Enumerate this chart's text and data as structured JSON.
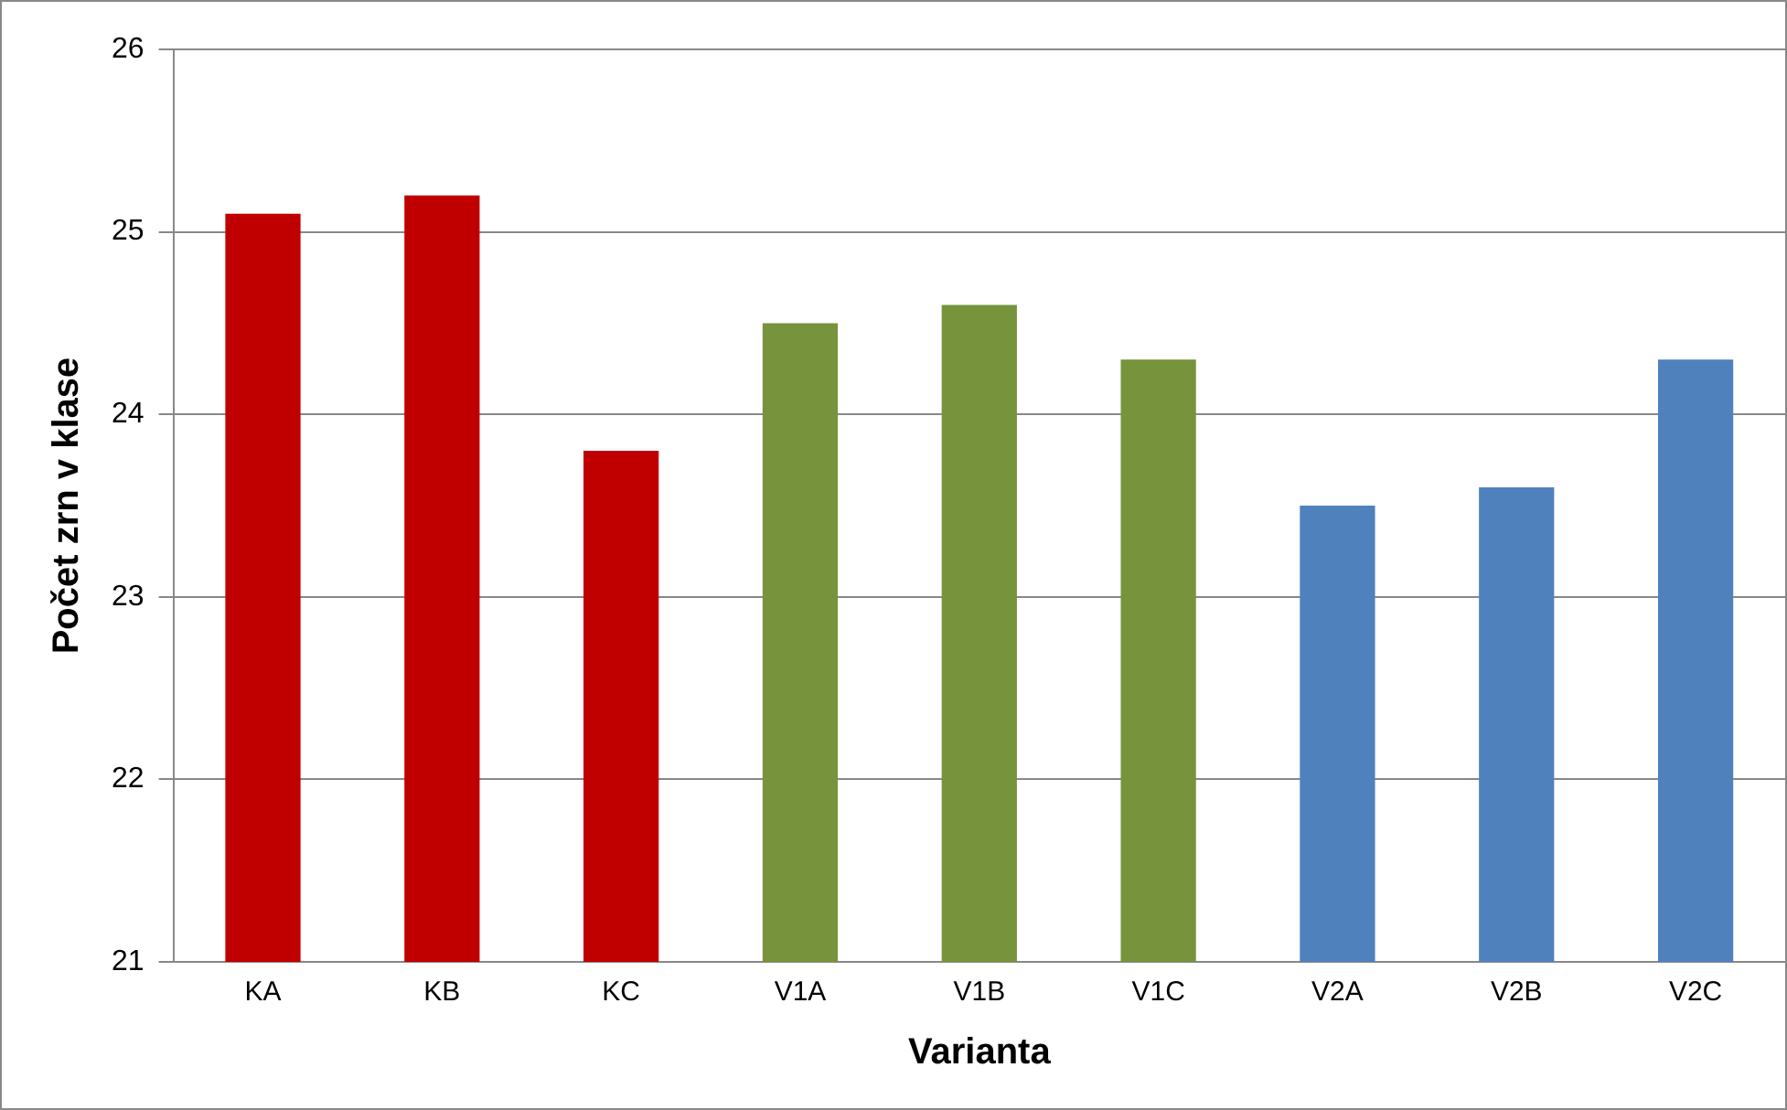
{
  "chart_data": {
    "type": "bar",
    "xlabel": "Varianta",
    "ylabel": "Počet zrn v klase",
    "categories": [
      "KA",
      "KB",
      "KC",
      "V1A",
      "V1B",
      "V1C",
      "V2A",
      "V2B",
      "V2C"
    ],
    "values": [
      25.1,
      25.2,
      23.8,
      24.5,
      24.6,
      24.3,
      23.5,
      23.6,
      24.3
    ],
    "colors": [
      "#c00000",
      "#c00000",
      "#c00000",
      "#77933c",
      "#77933c",
      "#77933c",
      "#4f81bd",
      "#4f81bd",
      "#4f81bd"
    ],
    "ylim": [
      21,
      26
    ],
    "yticks": [
      21,
      22,
      23,
      24,
      25,
      26
    ],
    "grid": "y",
    "legend": false
  }
}
